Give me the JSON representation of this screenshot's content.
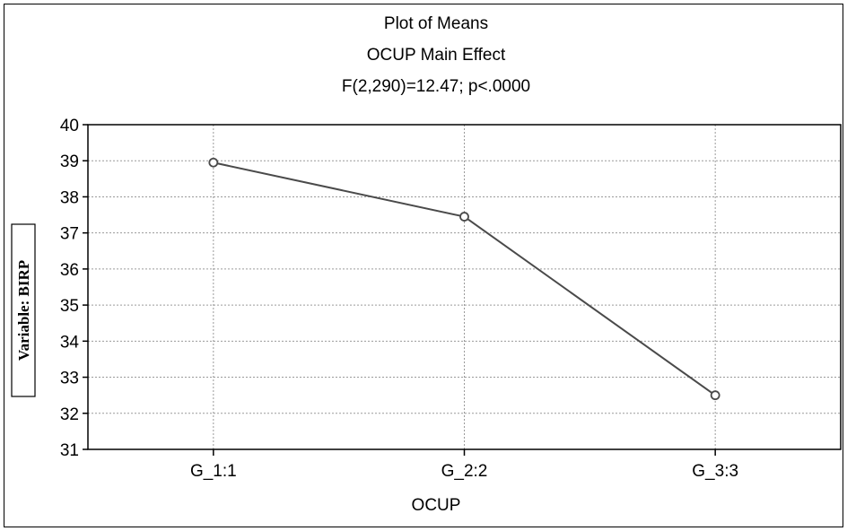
{
  "chart_data": {
    "type": "line",
    "title": "Plot of Means",
    "subtitle": "OCUP Main Effect",
    "stat_line": "F(2,290)=12.47; p<.0000",
    "xlabel": "OCUP",
    "ylabel": "Variable: BIRP",
    "categories": [
      "G_1:1",
      "G_2:2",
      "G_3:3"
    ],
    "values": [
      38.95,
      37.45,
      32.5
    ],
    "ylim": [
      31,
      40
    ],
    "yticks": [
      31,
      32,
      33,
      34,
      35,
      36,
      37,
      38,
      39,
      40
    ],
    "grid": true,
    "colors": {
      "line": "#4a4a4a",
      "marker_fill": "#ffffff",
      "grid": "#9a9a9a",
      "frame": "#000000"
    }
  }
}
